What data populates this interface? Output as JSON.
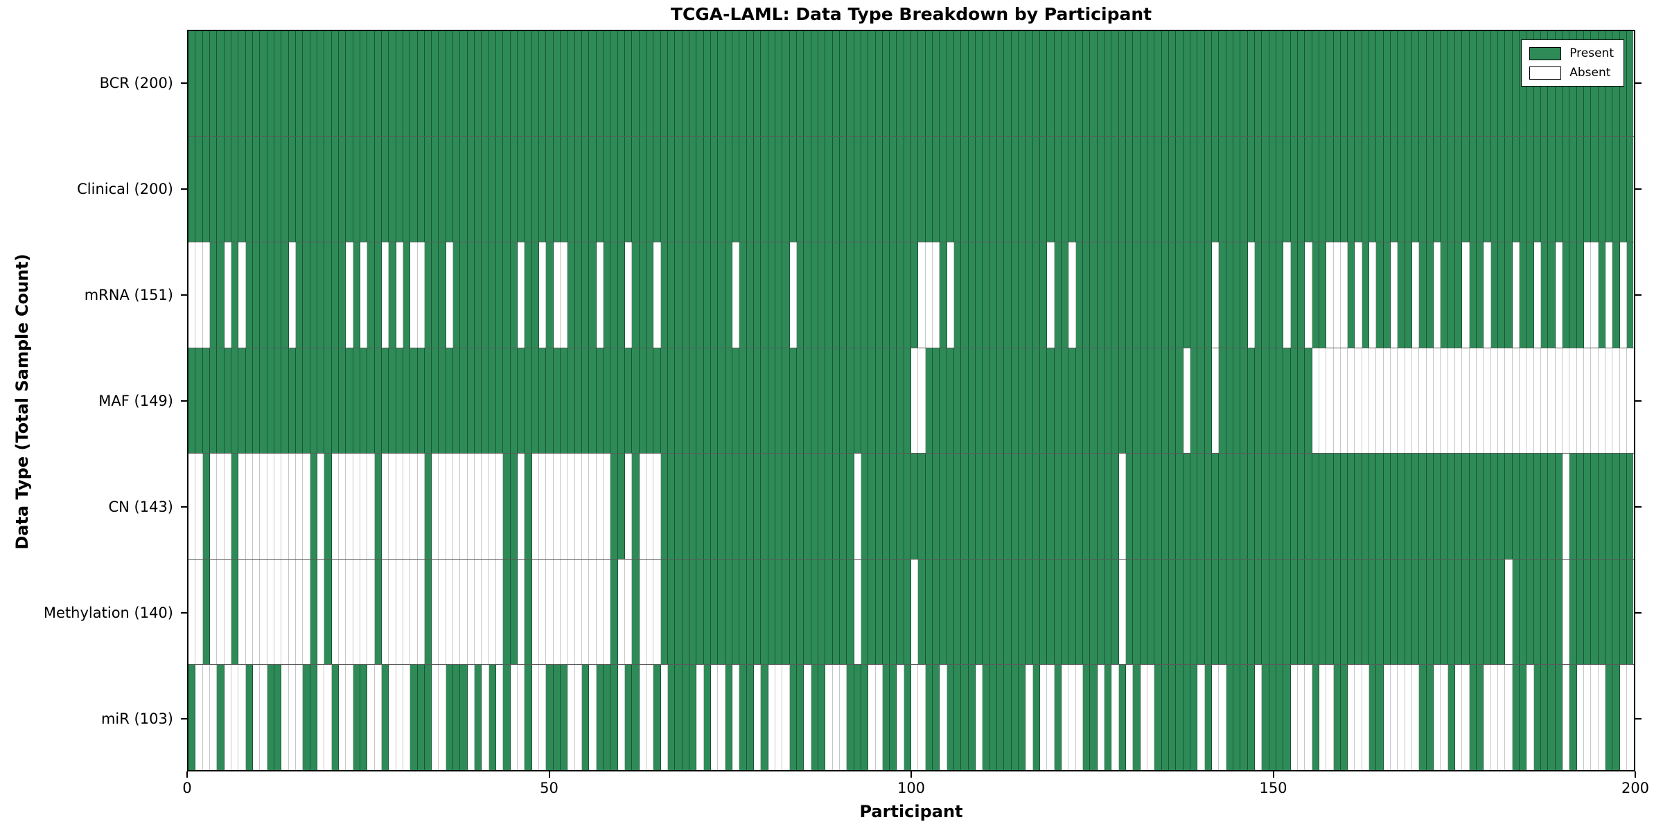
{
  "chart_data": {
    "type": "heatmap",
    "title": "TCGA-LAML: Data Type Breakdown by Participant",
    "xlabel": "Participant",
    "ylabel": "Data Type (Total Sample Count)",
    "x_range": [
      0,
      200
    ],
    "x_ticks": [
      "0",
      "50",
      "100",
      "150",
      "200"
    ],
    "x_tick_values": [
      0,
      50,
      100,
      150,
      200
    ],
    "n_participants": 200,
    "grid": "row-boundaries-only",
    "legend_position": "upper right",
    "legend": [
      {
        "label": "Present",
        "color": "#2e8b57"
      },
      {
        "label": "Absent",
        "color": "#ffffff"
      }
    ],
    "colors": {
      "present": "#2e8b57",
      "absent": "#ffffff",
      "cell_edge": "#1a3d2a"
    },
    "series": [
      {
        "name": "BCR (200)",
        "data_type": "BCR",
        "present_count": 200,
        "pattern": "1111111111111111111111111111111111111111111111111111111111111111111111111111111111111111111111111111111111111111111111111111111111111111111111111111111111111111111111111111111111111111111111111111111111"
      },
      {
        "name": "Clinical (200)",
        "data_type": "Clinical",
        "present_count": 200,
        "pattern": "1111111111111111111111111111111111111111111111111111111111111111111111111111111111111111111111111111111111111111111111111111111111111111111111111111111111111111111111111111111111111111111111111111111111"
      },
      {
        "name": "mRNA (151)",
        "data_type": "mRNA",
        "present_count": 151,
        "pattern": "0001101011111101111111010110101001110111111111011010011110111011101111111111011111110111111111111111110001011111111111110110111111111111111111101111011110110110001010110110110111011011101101101110010101"
      },
      {
        "name": "MAF (149)",
        "data_type": "MAF",
        "present_count": 149,
        "pattern": "1111111111111111111111111111111111111111111111111111111111111111111111111111111111111111111111111111100111111111111111111111111111111111111011101111111111111000000000000000000000000000000000000000000000"
      },
      {
        "name": "CN (143)",
        "data_type": "CN",
        "present_count": 143,
        "pattern": "0010001000000000010100000010000001000000000011010000000000011010001111111111111111111111111110111111111111111111111111111111111111011111111111111111111111111111111111111111111111111111111111110111111111"
      },
      {
        "name": "Methylation (140)",
        "data_type": "Methylation",
        "present_count": 140,
        "pattern": "0010001000000000010100000010000001000000000011010000000000010010001111111111111111111111111110111111101111111111111111111111111111011111111111111111111111111111111111111111111111111111011111110111111111"
      },
      {
        "name": "miR (103)",
        "data_type": "miR",
        "present_count": 103,
        "pattern": "1000100010011000110010011001000111001110101010010011100101110110010111101001011010001101100011100110100110111101111110100100011010101001111110100111101111000100110001100000110010011000011011110100001100"
      }
    ]
  }
}
